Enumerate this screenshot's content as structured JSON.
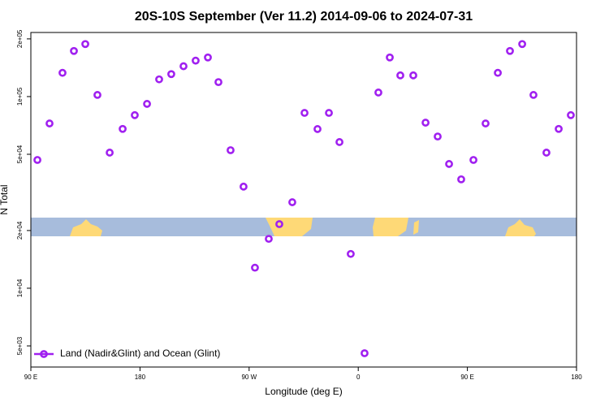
{
  "chart_data": {
    "type": "scatter",
    "title": "20S-10S September (Ver 11.2)   2014-09-06 to 2024-07-31",
    "x_label": "Longitude (deg E)",
    "y_label": "N Total",
    "log_y": true,
    "legend": "lower left",
    "xlim": [
      90,
      540
    ],
    "xticks": [
      {
        "value": 90,
        "label": "90 E"
      },
      180,
      {
        "value": 270,
        "label": "90 W"
      },
      {
        "value": 360,
        "label": "0"
      },
      {
        "value": 450,
        "label": "90 E"
      },
      {
        "value": 540,
        "label": "180"
      }
    ],
    "ylim": [
      3880,
      216000
    ],
    "yticks": [
      {
        "value": 5000,
        "label": "5e+03"
      },
      {
        "value": 10000,
        "label": "1e+04"
      },
      {
        "value": 20000,
        "label": "2e+04"
      },
      {
        "value": 50000,
        "label": "5e+04"
      },
      {
        "value": 100000,
        "label": "1e+05"
      },
      {
        "value": 200000,
        "label": "2e+05"
      }
    ],
    "series": [
      {
        "name": "Land (Nadir&Glint) and Ocean (Glint)",
        "color": "#a020f0",
        "x": [
          95.4,
          105.4,
          116.1,
          125.5,
          134.9,
          144.9,
          155,
          165.7,
          175.7,
          185.8,
          195.8,
          205.8,
          215.9,
          225.9,
          236,
          244.7,
          254.7,
          265.4,
          274.8,
          286.2,
          294.9,
          305.6,
          315.7,
          326.4,
          335.8,
          344.5,
          353.8,
          365.2,
          376.6,
          386,
          394.7,
          405.4,
          415.5,
          425.5,
          434.9,
          444.9,
          455,
          465,
          475.1,
          485.1,
          495.2,
          504.5,
          515.2,
          525.3,
          535.3
        ],
        "values": [
          46700,
          72400,
          133000,
          173000,
          188000,
          102000,
          51000,
          67800,
          80000,
          91600,
          123000,
          131000,
          144000,
          154000,
          160000,
          119000,
          52500,
          33900,
          12800,
          18100,
          21600,
          28100,
          82200,
          67700,
          82200,
          57900,
          15100,
          4580,
          105000,
          160000,
          129000,
          129000,
          73100,
          61900,
          44500,
          37000,
          46700,
          72400,
          133000,
          173000,
          188000,
          102000,
          51000,
          67800,
          80000
        ]
      }
    ]
  }
}
